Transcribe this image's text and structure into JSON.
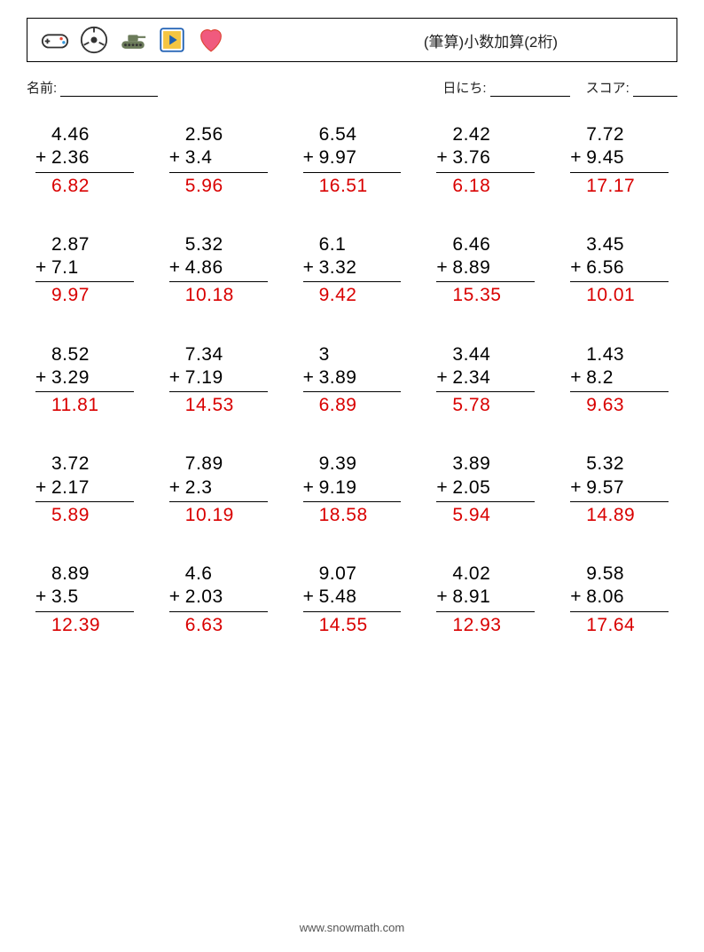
{
  "header": {
    "title": "(筆算)小数加算(2桁)"
  },
  "info": {
    "name_label": "名前:",
    "date_label": "日にち:",
    "score_label": "スコア:"
  },
  "style": {
    "answer_color": "#d90000",
    "text_color": "#000000",
    "font_size_problem": 21,
    "cols": 5,
    "rows": 5
  },
  "problems": [
    {
      "a": "4.46",
      "b": "2.36",
      "ans": "6.82"
    },
    {
      "a": "2.56",
      "b": "3.4",
      "ans": "5.96"
    },
    {
      "a": "6.54",
      "b": "9.97",
      "ans": "16.51"
    },
    {
      "a": "2.42",
      "b": "3.76",
      "ans": "6.18"
    },
    {
      "a": "7.72",
      "b": "9.45",
      "ans": "17.17"
    },
    {
      "a": "2.87",
      "b": "7.1",
      "ans": "9.97"
    },
    {
      "a": "5.32",
      "b": "4.86",
      "ans": "10.18"
    },
    {
      "a": "6.1",
      "b": "3.32",
      "ans": "9.42"
    },
    {
      "a": "6.46",
      "b": "8.89",
      "ans": "15.35"
    },
    {
      "a": "3.45",
      "b": "6.56",
      "ans": "10.01"
    },
    {
      "a": "8.52",
      "b": "3.29",
      "ans": "11.81"
    },
    {
      "a": "7.34",
      "b": "7.19",
      "ans": "14.53"
    },
    {
      "a": "3",
      "b": "3.89",
      "ans": "6.89"
    },
    {
      "a": "3.44",
      "b": "2.34",
      "ans": "5.78"
    },
    {
      "a": "1.43",
      "b": "8.2",
      "ans": "9.63"
    },
    {
      "a": "3.72",
      "b": "2.17",
      "ans": "5.89"
    },
    {
      "a": "7.89",
      "b": "2.3",
      "ans": "10.19"
    },
    {
      "a": "9.39",
      "b": "9.19",
      "ans": "18.58"
    },
    {
      "a": "3.89",
      "b": "2.05",
      "ans": "5.94"
    },
    {
      "a": "5.32",
      "b": "9.57",
      "ans": "14.89"
    },
    {
      "a": "8.89",
      "b": "3.5",
      "ans": "12.39"
    },
    {
      "a": "4.6",
      "b": "2.03",
      "ans": "6.63"
    },
    {
      "a": "9.07",
      "b": "5.48",
      "ans": "14.55"
    },
    {
      "a": "4.02",
      "b": "8.91",
      "ans": "12.93"
    },
    {
      "a": "9.58",
      "b": "8.06",
      "ans": "17.64"
    }
  ],
  "footer": {
    "url": "www.snowmath.com"
  }
}
